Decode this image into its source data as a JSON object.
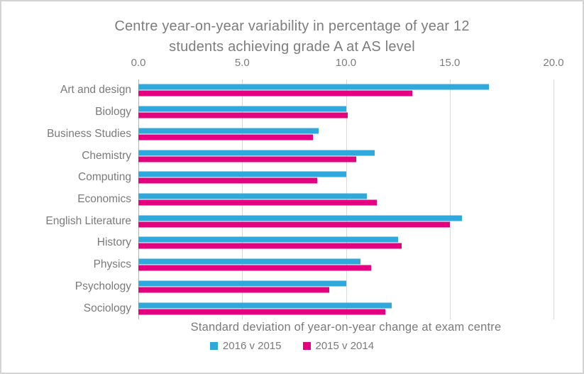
{
  "colors": {
    "series_2016_v_2015": "#2fa9dc",
    "series_2015_v_2014": "#e3017f",
    "text_gray": "#7d7d7d",
    "gridline": "#d9d9d9",
    "axis_line": "#b3b3b3",
    "frame_border": "#d4d4d4"
  },
  "chart_data": {
    "type": "bar",
    "orientation": "horizontal",
    "title": "Centre year-on-year variability in percentage of year 12 students achieving grade A at AS level",
    "title_lines": [
      "Centre year-on-year variability in percentage of year 12",
      "students achieving grade A at AS level"
    ],
    "xlabel": "Standard deviation of year-on-year change at exam centre",
    "xlim": [
      0,
      20
    ],
    "x_ticks": [
      {
        "value": 0,
        "label": "0.0"
      },
      {
        "value": 5,
        "label": "5.0"
      },
      {
        "value": 10,
        "label": "10.0"
      },
      {
        "value": 15,
        "label": "15.0"
      },
      {
        "value": 20,
        "label": "20.0"
      }
    ],
    "grid": "vertical-gridlines-on",
    "legend_position": "bottom",
    "categories": [
      "Art and design",
      "Biology",
      "Business Studies",
      "Chemistry",
      "Computing",
      "Economics",
      "English Literature",
      "History",
      "Physics",
      "Psychology",
      "Sociology"
    ],
    "series": [
      {
        "name": "2016 v 2015",
        "color": "#2fa9dc",
        "values": [
          16.9,
          10.0,
          8.7,
          11.4,
          10.0,
          11.0,
          15.6,
          12.5,
          10.7,
          10.0,
          12.2
        ]
      },
      {
        "name": "2015 v 2014",
        "color": "#e3017f",
        "values": [
          13.2,
          10.1,
          8.4,
          10.5,
          8.6,
          11.5,
          15.0,
          12.7,
          11.2,
          9.2,
          11.9
        ]
      }
    ]
  }
}
